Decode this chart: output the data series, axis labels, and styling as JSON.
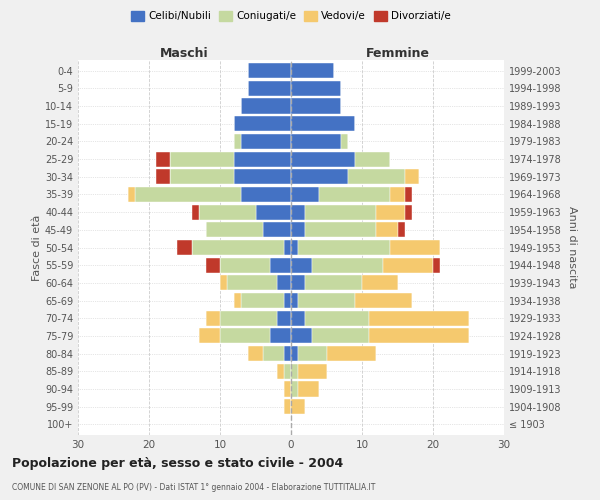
{
  "age_groups": [
    "100+",
    "95-99",
    "90-94",
    "85-89",
    "80-84",
    "75-79",
    "70-74",
    "65-69",
    "60-64",
    "55-59",
    "50-54",
    "45-49",
    "40-44",
    "35-39",
    "30-34",
    "25-29",
    "20-24",
    "15-19",
    "10-14",
    "5-9",
    "0-4"
  ],
  "birth_years": [
    "≤ 1903",
    "1904-1908",
    "1909-1913",
    "1914-1918",
    "1919-1923",
    "1924-1928",
    "1929-1933",
    "1934-1938",
    "1939-1943",
    "1944-1948",
    "1949-1953",
    "1954-1958",
    "1959-1963",
    "1964-1968",
    "1969-1973",
    "1974-1978",
    "1979-1983",
    "1984-1988",
    "1989-1993",
    "1994-1998",
    "1999-2003"
  ],
  "colors": {
    "celibi": "#4472c4",
    "coniugati": "#c5d9a0",
    "vedovi": "#f5c96e",
    "divorziati": "#c0392b"
  },
  "males": {
    "celibi": [
      0,
      0,
      0,
      0,
      1,
      3,
      2,
      1,
      2,
      3,
      1,
      4,
      5,
      7,
      8,
      8,
      7,
      8,
      7,
      6,
      6
    ],
    "coniugati": [
      0,
      0,
      0,
      1,
      3,
      7,
      8,
      6,
      7,
      7,
      13,
      8,
      8,
      15,
      9,
      9,
      1,
      0,
      0,
      0,
      0
    ],
    "vedovi": [
      0,
      1,
      1,
      1,
      2,
      3,
      2,
      1,
      1,
      0,
      0,
      0,
      0,
      1,
      0,
      0,
      0,
      0,
      0,
      0,
      0
    ],
    "divorziati": [
      0,
      0,
      0,
      0,
      0,
      0,
      0,
      0,
      0,
      2,
      2,
      0,
      1,
      0,
      2,
      2,
      0,
      0,
      0,
      0,
      0
    ]
  },
  "females": {
    "celibi": [
      0,
      0,
      0,
      0,
      1,
      3,
      2,
      1,
      2,
      3,
      1,
      2,
      2,
      4,
      8,
      9,
      7,
      9,
      7,
      7,
      6
    ],
    "coniugati": [
      0,
      0,
      1,
      1,
      4,
      8,
      9,
      8,
      8,
      10,
      13,
      10,
      10,
      10,
      8,
      5,
      1,
      0,
      0,
      0,
      0
    ],
    "vedovi": [
      0,
      2,
      3,
      4,
      7,
      14,
      14,
      8,
      5,
      7,
      7,
      3,
      4,
      2,
      2,
      0,
      0,
      0,
      0,
      0,
      0
    ],
    "divorziati": [
      0,
      0,
      0,
      0,
      0,
      0,
      0,
      0,
      0,
      1,
      0,
      1,
      1,
      1,
      0,
      0,
      0,
      0,
      0,
      0,
      0
    ]
  },
  "xlim": 30,
  "title": "Popolazione per età, sesso e stato civile - 2004",
  "subtitle": "COMUNE DI SAN ZENONE AL PO (PV) - Dati ISTAT 1° gennaio 2004 - Elaborazione TUTTITALIA.IT",
  "xlabel_left": "Maschi",
  "xlabel_right": "Femmine",
  "ylabel_left": "Fasce di età",
  "ylabel_right": "Anni di nascita",
  "legend_labels": [
    "Celibi/Nubili",
    "Coniugati/e",
    "Vedovi/e",
    "Divorziati/e"
  ],
  "bg_color": "#f0f0f0",
  "plot_bg": "#ffffff",
  "grid_color": "#cccccc",
  "bar_height": 0.85
}
